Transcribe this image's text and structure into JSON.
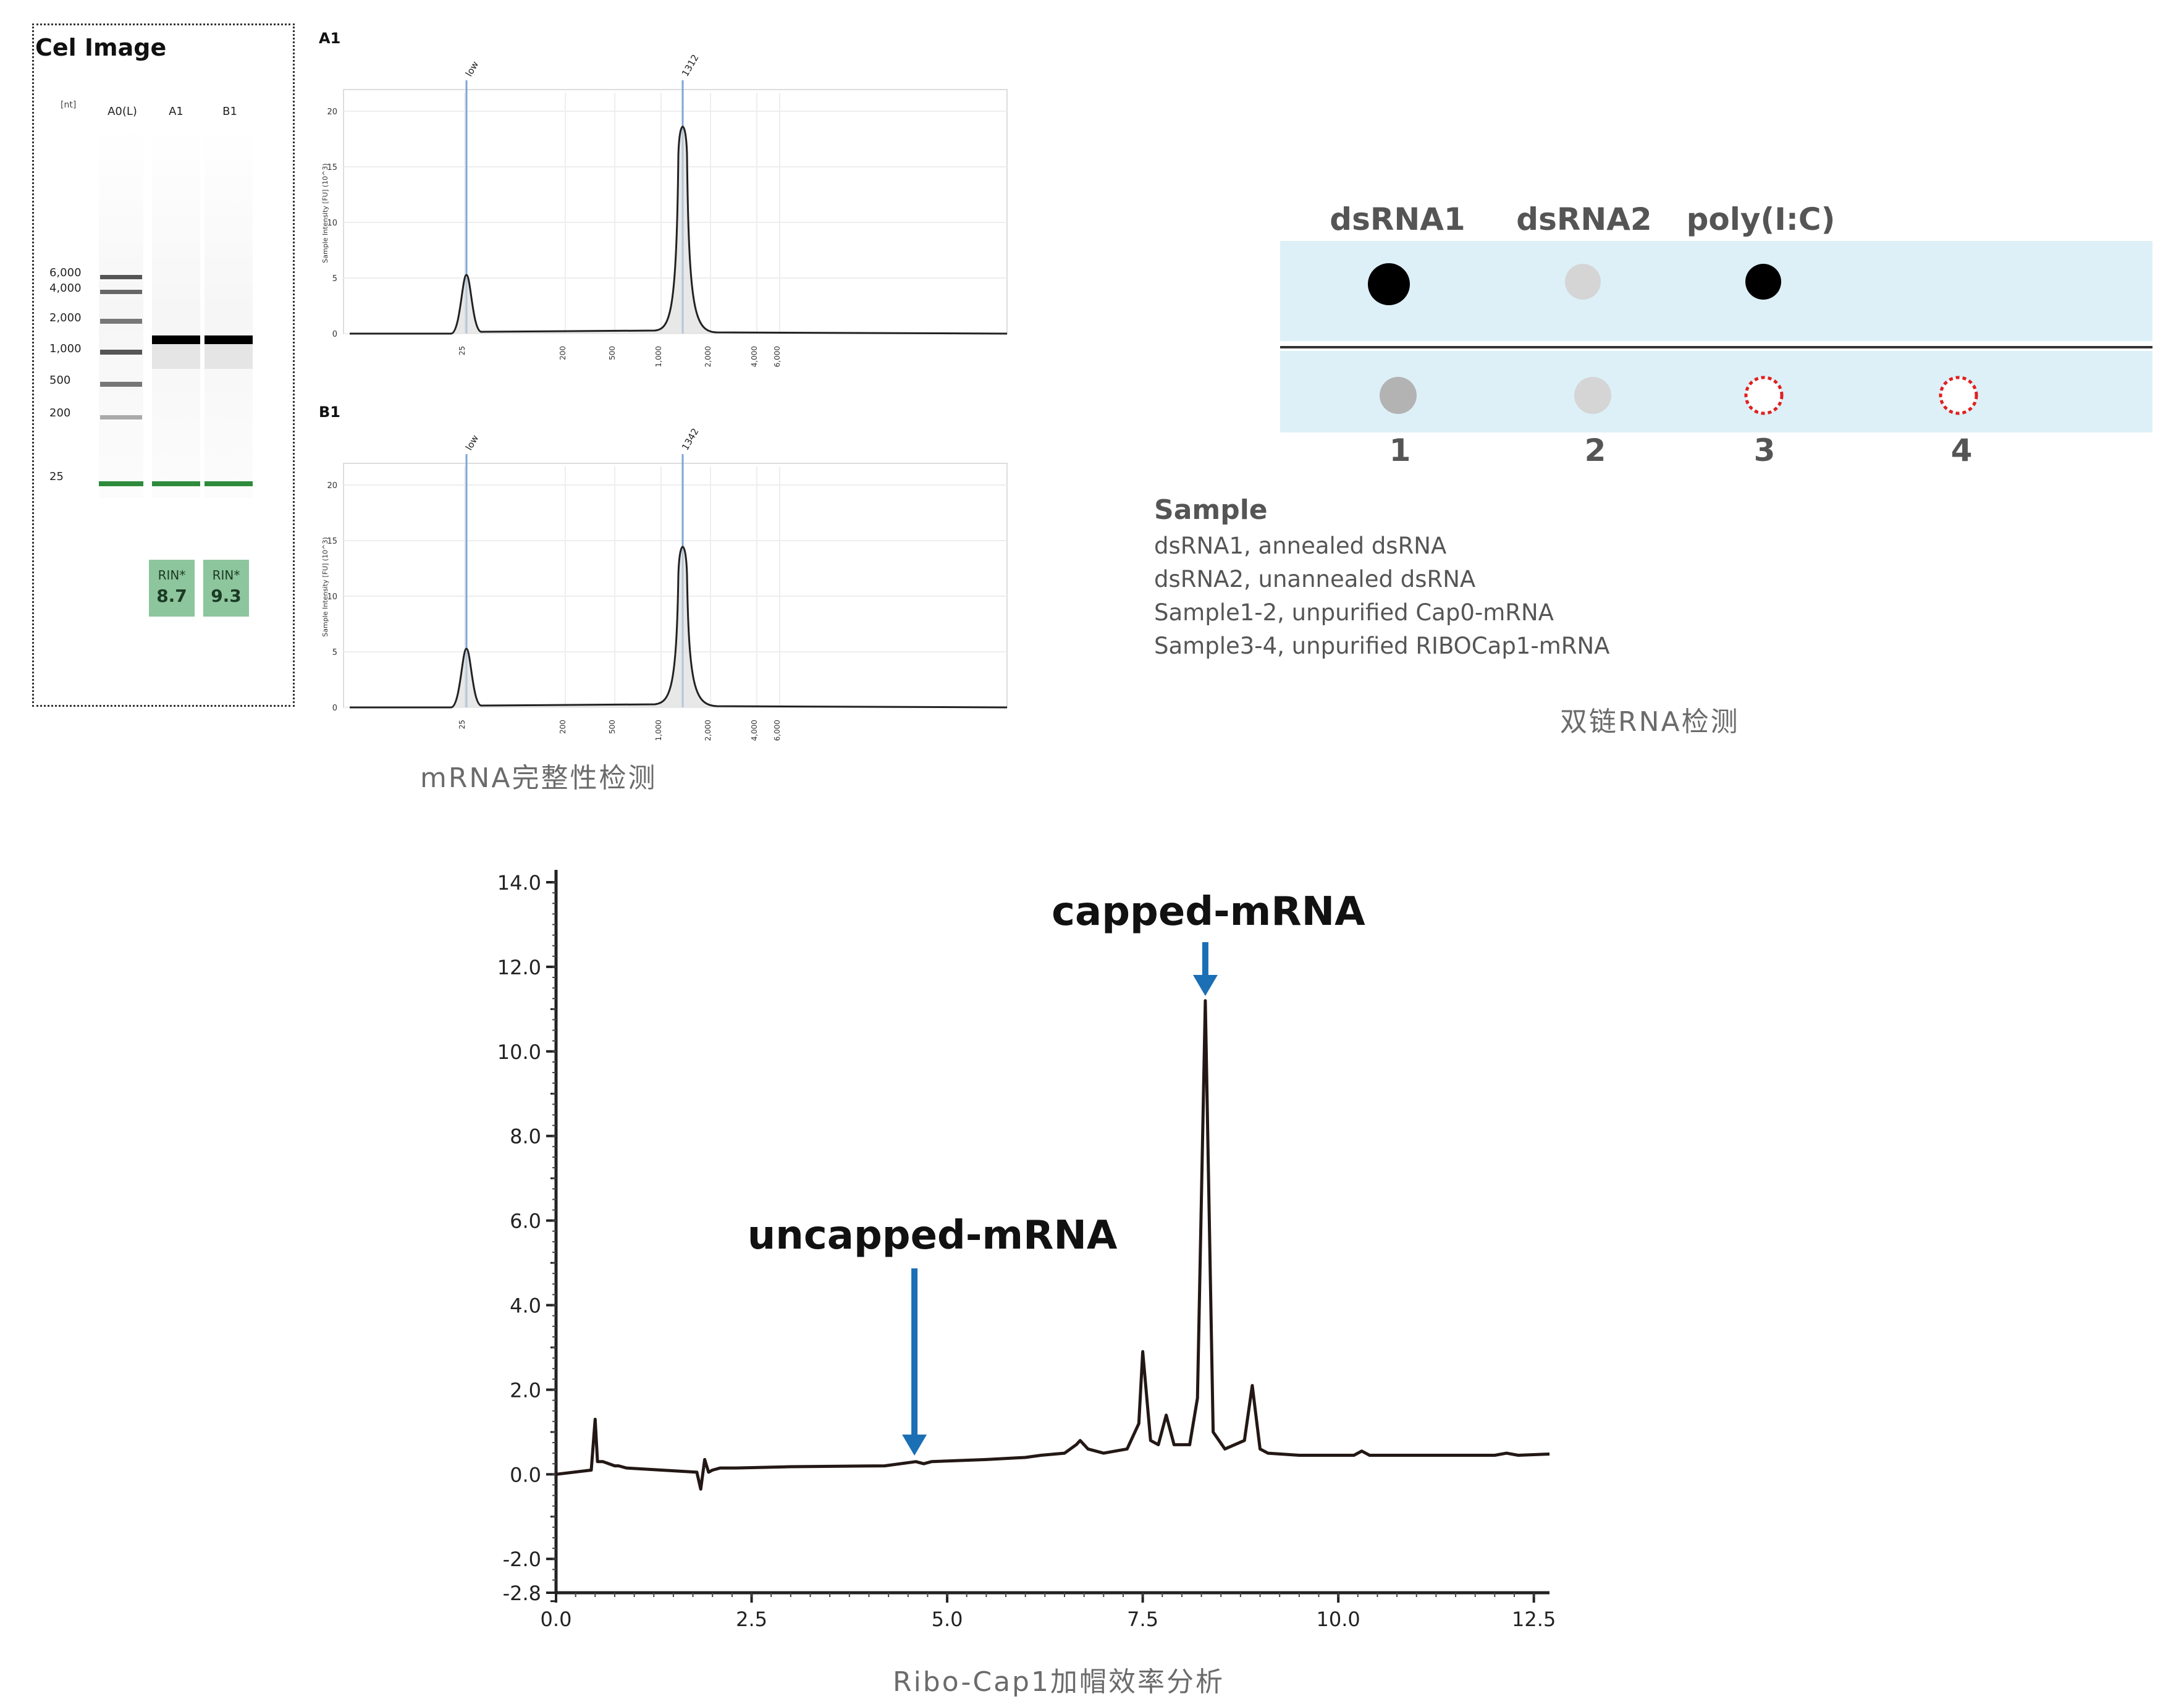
{
  "gel": {
    "title": "Cel Image",
    "unit": "[nt]",
    "lanes": [
      "A0(L)",
      "A1",
      "B1"
    ],
    "ladder_sizes": [
      "6,000",
      "4,000",
      "2,000",
      "1,000",
      "500",
      "200",
      "25"
    ],
    "rin_label": "RIN*",
    "rin_values": [
      "8.7",
      "9.3"
    ],
    "rin_color": "#8dc59c",
    "marker_color": "#2e8b3c"
  },
  "electropherograms": [
    {
      "name": "A1",
      "peak_labels": [
        "low",
        "1312"
      ],
      "y_ticks": [
        "0",
        "5",
        "10",
        "15",
        "20"
      ],
      "x_ticks": [
        "25",
        "200",
        "500",
        "1,000",
        "2,000",
        "4,000",
        "6,000"
      ],
      "y_label": "Sample Intensity [FU] (10^3)"
    },
    {
      "name": "B1",
      "peak_labels": [
        "low",
        "1342"
      ],
      "y_ticks": [
        "0",
        "5",
        "10",
        "15",
        "20"
      ],
      "x_ticks": [
        "25",
        "200",
        "500",
        "1,000",
        "2,000",
        "4,000",
        "6,000"
      ],
      "y_label": "Sample Intensity [FU] (10^3)"
    }
  ],
  "integrity_caption": "mRNA完整性检测",
  "dot_blot": {
    "headers": [
      "dsRNA1",
      "dsRNA2",
      "poly(I:C)"
    ],
    "sample_numbers": [
      "1",
      "2",
      "3",
      "4"
    ],
    "band_color": "#ddf0f7",
    "sample_title": "Sample",
    "sample_lines": [
      "dsRNA1, annealed dsRNA",
      "dsRNA2, unannealed dsRNA",
      "Sample1-2, unpurified Cap0-mRNA",
      "Sample3-4, unpurified RIBOCap1-mRNA"
    ],
    "caption": "双链RNA检测",
    "dots_row1": [
      {
        "color": "#000000",
        "style": "filled"
      },
      {
        "color": "#d5d5d5",
        "style": "filled"
      },
      {
        "color": "#000000",
        "style": "filled"
      }
    ],
    "dots_row2": [
      {
        "color": "#b3b3b3",
        "style": "filled"
      },
      {
        "color": "#d5d5d5",
        "style": "filled"
      },
      {
        "color": "#e02020",
        "style": "dashed-ring"
      },
      {
        "color": "#e02020",
        "style": "dashed-ring"
      }
    ]
  },
  "chart_data": {
    "type": "line",
    "title": "",
    "xlabel": "",
    "ylabel": "",
    "xlim": [
      0,
      12.7
    ],
    "ylim": [
      -2.8,
      14.0
    ],
    "x_ticks": [
      "0.0",
      "2.5",
      "5.0",
      "7.5",
      "10.0",
      "12.5"
    ],
    "y_ticks": [
      "14.0",
      "12.0",
      "10.0",
      "8.0",
      "6.0",
      "4.0",
      "2.0",
      "0.0",
      "-2.0",
      "-2.8"
    ],
    "line_color": "#231815",
    "series": [
      {
        "name": "",
        "x": [
          0.0,
          0.45,
          0.5,
          0.53,
          0.6,
          0.75,
          0.8,
          0.9,
          1.8,
          1.85,
          1.9,
          1.95,
          2.0,
          2.1,
          2.3,
          3.0,
          4.2,
          4.6,
          4.7,
          4.8,
          5.5,
          6.0,
          6.2,
          6.5,
          6.65,
          6.7,
          6.8,
          7.0,
          7.3,
          7.45,
          7.5,
          7.6,
          7.7,
          7.8,
          7.9,
          8.1,
          8.2,
          8.3,
          8.4,
          8.55,
          8.8,
          8.9,
          9.0,
          9.1,
          9.5,
          10.2,
          10.3,
          10.4,
          12.0,
          12.15,
          12.3,
          12.7
        ],
        "y": [
          0.0,
          0.1,
          1.3,
          0.3,
          0.3,
          0.2,
          0.2,
          0.15,
          0.05,
          -0.35,
          0.35,
          0.05,
          0.1,
          0.15,
          0.15,
          0.18,
          0.2,
          0.3,
          0.25,
          0.3,
          0.35,
          0.4,
          0.45,
          0.5,
          0.7,
          0.8,
          0.6,
          0.5,
          0.6,
          1.2,
          2.9,
          0.8,
          0.7,
          1.4,
          0.7,
          0.7,
          1.8,
          11.2,
          1.0,
          0.6,
          0.8,
          2.1,
          0.6,
          0.5,
          0.45,
          0.45,
          0.55,
          0.45,
          0.45,
          0.5,
          0.45,
          0.48
        ]
      }
    ],
    "annotations": [
      {
        "text": "capped-mRNA",
        "x": 8.3,
        "arrow_color": "#1a6fb5"
      },
      {
        "text": "uncapped-mRNA",
        "x": 4.7,
        "arrow_color": "#1a6fb5"
      }
    ]
  },
  "cap_caption": "Ribo-Cap1加帽效率分析"
}
